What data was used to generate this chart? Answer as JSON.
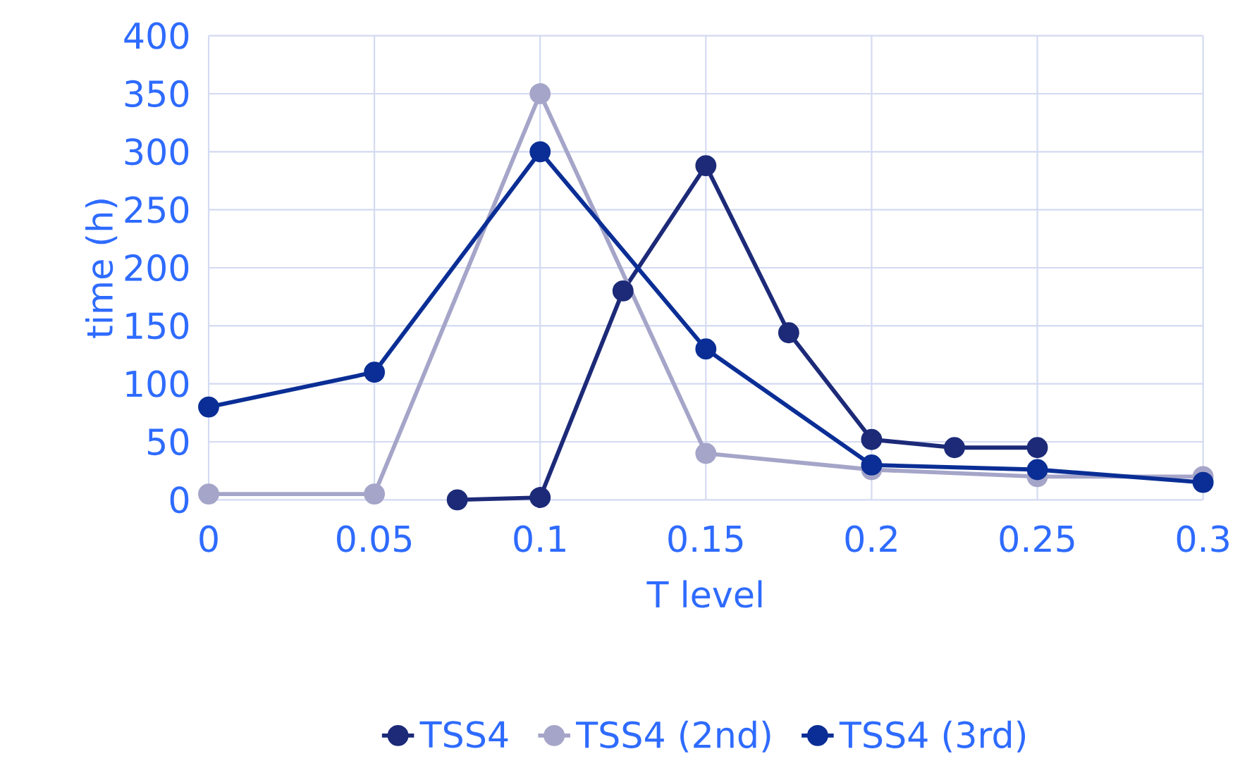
{
  "chart_data": {
    "type": "line",
    "xlabel": "T level",
    "ylabel": "time (h)",
    "xlim": [
      0,
      0.3
    ],
    "xticks": [
      0,
      0.05,
      0.1,
      0.15,
      0.2,
      0.25,
      0.3
    ],
    "ylim": [
      0,
      400
    ],
    "yticks": [
      0,
      50,
      100,
      150,
      200,
      250,
      300,
      350,
      400
    ],
    "grid": true,
    "legend": "bottom",
    "marker": "circle",
    "line_style": "solid",
    "series": [
      {
        "name": "TSS4",
        "color": "#1c2a78",
        "x": [
          0.075,
          0.1,
          0.125,
          0.15,
          0.175,
          0.2,
          0.225,
          0.25
        ],
        "values": [
          0,
          2,
          180,
          288,
          144,
          52,
          45,
          45
        ]
      },
      {
        "name": "TSS4 (2nd)",
        "color": "#a5a5c9",
        "x": [
          0,
          0.05,
          0.1,
          0.15,
          0.2,
          0.25,
          0.3
        ],
        "values": [
          5,
          5,
          350,
          40,
          26,
          20,
          20
        ]
      },
      {
        "name": "TSS4 (3rd)",
        "color": "#0a2e95",
        "x": [
          0,
          0.05,
          0.1,
          0.15,
          0.2,
          0.25,
          0.3
        ],
        "values": [
          80,
          110,
          300,
          130,
          30,
          26,
          15
        ]
      }
    ]
  }
}
